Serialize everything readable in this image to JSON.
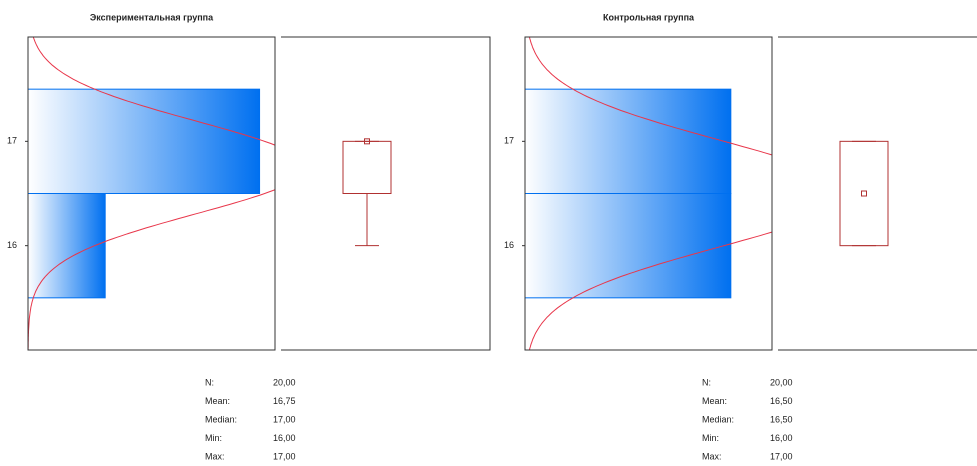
{
  "chart_data": [
    {
      "type": "histogram",
      "title": "Экспериментальная группа",
      "orientation": "horizontal",
      "bins": [
        15.5,
        16.5,
        17.5
      ],
      "counts": [
        5,
        15
      ],
      "xlim": [
        0,
        16
      ],
      "ylim": [
        15,
        18
      ],
      "yticks": [
        16,
        17
      ],
      "color": "#0070f0",
      "curve_color": "#e8364a",
      "quartiles": [
        16.5,
        17
      ],
      "stats": {
        "labels": [
          "N:",
          "Mean:",
          "Median:",
          "Min:",
          "Max:"
        ],
        "values": [
          20,
          16.75,
          17,
          16,
          17
        ],
        "value_labels": [
          "20,00",
          "16,75",
          "17,00",
          "16,00",
          "17,00"
        ]
      }
    },
    {
      "type": "histogram",
      "title": "Контрольная группа",
      "orientation": "horizontal",
      "bins": [
        15.5,
        16.5,
        17.5
      ],
      "counts": [
        10,
        10
      ],
      "xlim": [
        0,
        12
      ],
      "ylim": [
        15,
        18
      ],
      "yticks": [
        16,
        17
      ],
      "color": "#0070f0",
      "curve_color": "#e8364a",
      "quartiles": [
        16,
        17
      ],
      "stats": {
        "labels": [
          "N:",
          "Mean:",
          "Median:",
          "Min:",
          "Max:"
        ],
        "values": [
          20,
          16.5,
          16.5,
          16,
          17
        ],
        "value_labels": [
          "20,00",
          "16,50",
          "16,50",
          "16,00",
          "17,00"
        ]
      }
    }
  ]
}
